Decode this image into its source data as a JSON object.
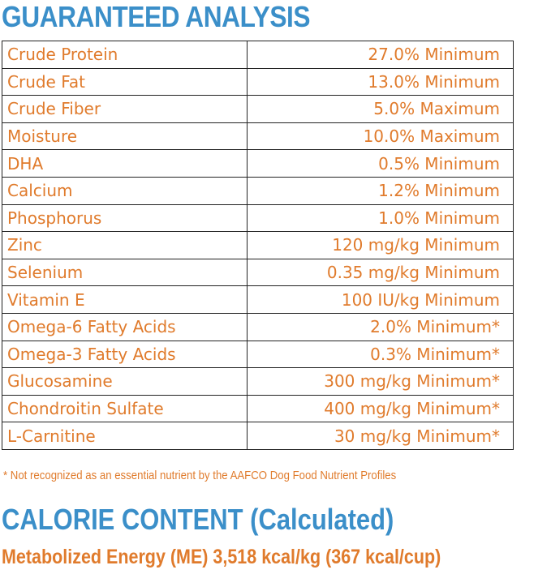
{
  "header": {
    "title": "GUARANTEED ANALYSIS"
  },
  "table": {
    "rows": [
      [
        "Crude Protein",
        "27.0% Minimum"
      ],
      [
        "Crude Fat",
        "13.0% Minimum"
      ],
      [
        "Crude Fiber",
        "5.0%  Maximum"
      ],
      [
        "Moisture",
        "10.0% Maximum"
      ],
      [
        "DHA",
        "0.5% Minimum"
      ],
      [
        "Calcium",
        "1.2% Minimum"
      ],
      [
        "Phosphorus",
        "1.0% Minimum"
      ],
      [
        "Zinc",
        "120 mg/kg Minimum"
      ],
      [
        "Selenium",
        "0.35 mg/kg Minimum"
      ],
      [
        "Vitamin E",
        "100 IU/kg Minimum"
      ],
      [
        "Omega-6 Fatty Acids",
        "2.0% Minimum*"
      ],
      [
        "Omega-3 Fatty Acids",
        "0.3% Minimum*"
      ],
      [
        "Glucosamine",
        "300 mg/kg Minimum*"
      ],
      [
        "Chondroitin Sulfate",
        "400 mg/kg Minimum*"
      ],
      [
        "L-Carnitine",
        "30 mg/kg Minimum*"
      ]
    ]
  },
  "footnote": "* Not recognized as an essential nutrient by the AAFCO Dog Food Nutrient Profiles",
  "calorie": {
    "title": "CALORIE CONTENT (Calculated)",
    "text": "Metabolized Energy (ME) 3,518 kcal/kg (367 kcal/cup)"
  }
}
